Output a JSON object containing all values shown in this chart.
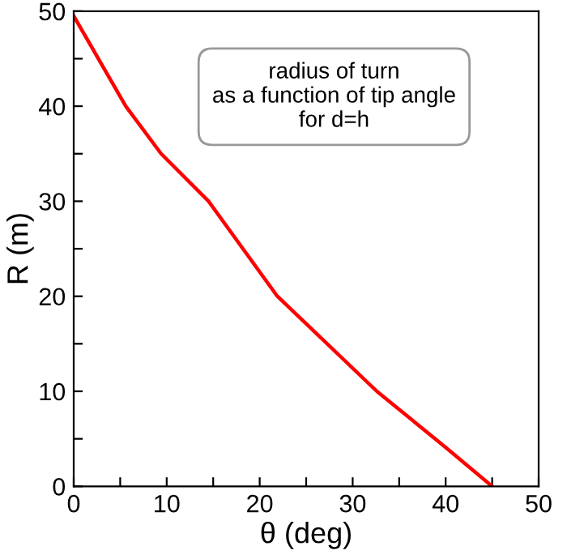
{
  "chart_data": {
    "type": "line",
    "xlabel": "θ (deg)",
    "ylabel": "R (m)",
    "x": [
      0,
      5.6,
      9.4,
      14.5,
      21.9,
      25,
      32.6,
      40,
      45
    ],
    "series": [
      {
        "color": "#ff0000",
        "values": [
          49.5,
          40,
          35,
          30,
          20,
          17.1,
          10,
          4.1,
          0
        ]
      }
    ],
    "xlim": [
      0,
      50
    ],
    "ylim": [
      0,
      50
    ],
    "xticks": [
      0,
      {
        "value": 5,
        "label": null
      },
      10,
      {
        "value": 15,
        "label": null
      },
      20,
      {
        "value": 25,
        "label": null
      },
      30,
      {
        "value": 35,
        "label": null
      },
      40,
      {
        "value": 45,
        "label": null
      },
      50
    ],
    "yticks": [
      0,
      {
        "value": 5,
        "label": null
      },
      10,
      {
        "value": 15,
        "label": null
      },
      20,
      {
        "value": 25,
        "label": null
      },
      30,
      {
        "value": 35,
        "label": null
      },
      40,
      {
        "value": 45,
        "label": null
      },
      50
    ],
    "annotations": [
      "radius of turn\nas a function of tip angle\nfor d=h"
    ],
    "grid": false,
    "legend": false,
    "marker": "none",
    "line_style": "solid"
  }
}
